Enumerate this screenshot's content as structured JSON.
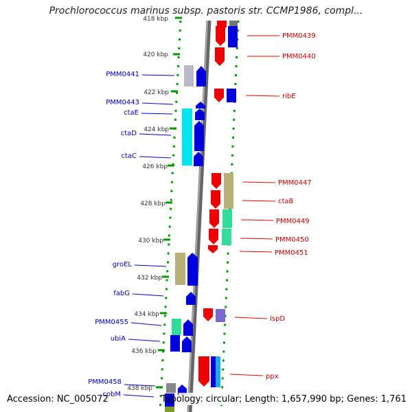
{
  "title": "Prochlorococcus marinus subsp. pastoris str. CCMP1986, compl...",
  "footer": {
    "accession": "Accession: NC_005072",
    "summary": "Topology: circular; Length: 1,657,990 bp; Genes: 1,761"
  },
  "ticks": [
    "418 kbp",
    "420 kbp",
    "422 kbp",
    "424 kbp",
    "426 kbp",
    "428 kbp",
    "430 kbp",
    "432 kbp",
    "434 kbp",
    "436 kbp",
    "438 kbp"
  ],
  "left_genes": [
    "PMM0441",
    "PMM0443",
    "ctaE",
    "ctaD",
    "ctaC",
    "groEL",
    "fabG",
    "PMM0455",
    "ubiA",
    "PMM0458",
    "cobM"
  ],
  "right_genes": [
    "PMM0439",
    "PMM0440",
    "ribE",
    "PMM0447",
    "ctaB",
    "PMM0449",
    "PMM0450",
    "PMM0451",
    "ispD",
    "ppx"
  ],
  "colors": {
    "left_strand": "#0000ee",
    "right_strand": "#ee0000",
    "dotted_track": "#009900",
    "backbone": "#888888"
  }
}
